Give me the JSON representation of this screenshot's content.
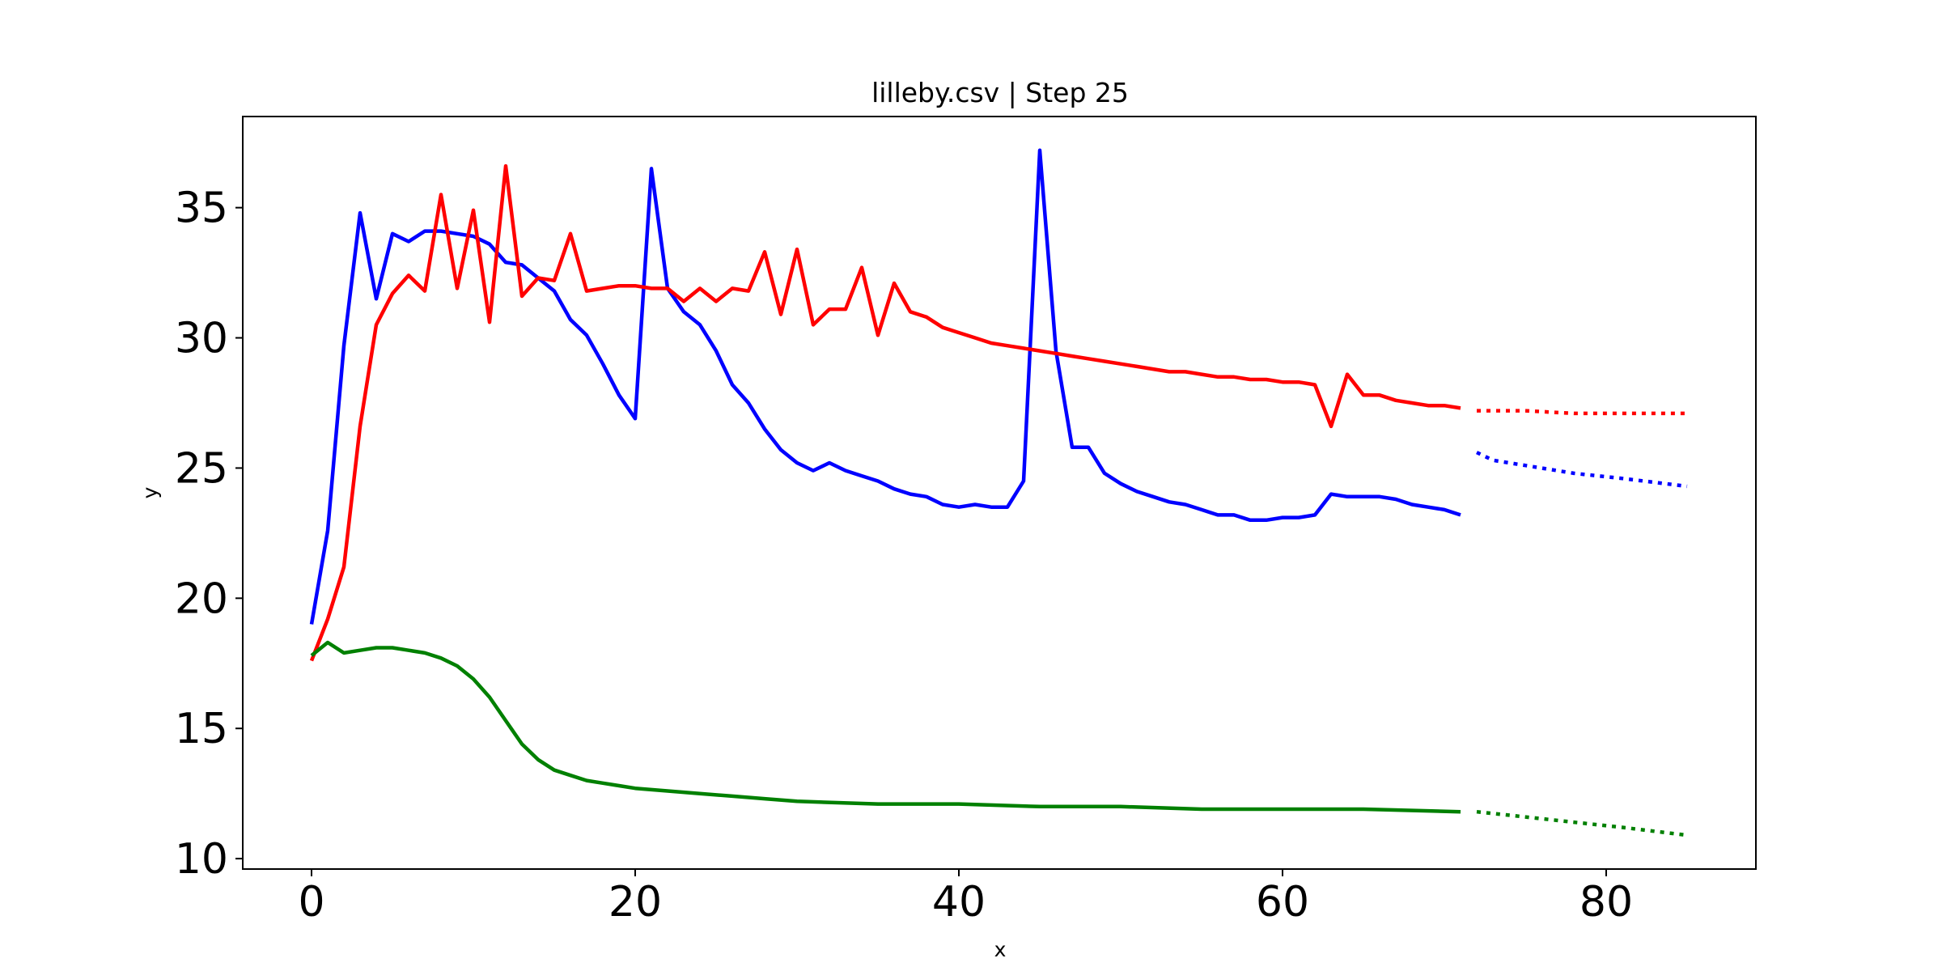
{
  "chart_data": {
    "type": "line",
    "title": "lilleby.csv | Step 25",
    "xlabel": "x",
    "ylabel": "y",
    "xlim": [
      -4.25,
      89.25
    ],
    "ylim": [
      9.6,
      38.5
    ],
    "xticks": [
      0,
      20,
      40,
      60,
      80
    ],
    "yticks": [
      10,
      15,
      20,
      25,
      30,
      35
    ],
    "grid": false,
    "legend": "none",
    "series": [
      {
        "color": "#0000ff",
        "style": "solid",
        "points": [
          [
            0,
            19.0
          ],
          [
            1,
            22.6
          ],
          [
            2,
            29.7
          ],
          [
            3,
            34.8
          ],
          [
            4,
            31.5
          ],
          [
            5,
            34.0
          ],
          [
            6,
            33.7
          ],
          [
            7,
            34.1
          ],
          [
            8,
            34.1
          ],
          [
            9,
            34.0
          ],
          [
            10,
            33.9
          ],
          [
            11,
            33.6
          ],
          [
            12,
            32.9
          ],
          [
            13,
            32.8
          ],
          [
            14,
            32.3
          ],
          [
            15,
            31.8
          ],
          [
            16,
            30.7
          ],
          [
            17,
            30.1
          ],
          [
            18,
            29.0
          ],
          [
            19,
            27.8
          ],
          [
            20,
            26.9
          ],
          [
            21,
            36.5
          ],
          [
            22,
            31.9
          ],
          [
            23,
            31.0
          ],
          [
            24,
            30.5
          ],
          [
            25,
            29.5
          ],
          [
            26,
            28.2
          ],
          [
            27,
            27.5
          ],
          [
            28,
            26.5
          ],
          [
            29,
            25.7
          ],
          [
            30,
            25.2
          ],
          [
            31,
            24.9
          ],
          [
            32,
            25.2
          ],
          [
            33,
            24.9
          ],
          [
            34,
            24.7
          ],
          [
            35,
            24.5
          ],
          [
            36,
            24.2
          ],
          [
            37,
            24.0
          ],
          [
            38,
            23.9
          ],
          [
            39,
            23.6
          ],
          [
            40,
            23.5
          ],
          [
            41,
            23.6
          ],
          [
            42,
            23.5
          ],
          [
            43,
            23.5
          ],
          [
            44,
            24.5
          ],
          [
            45,
            37.2
          ],
          [
            46,
            29.5
          ],
          [
            47,
            25.8
          ],
          [
            48,
            25.8
          ],
          [
            49,
            24.8
          ],
          [
            50,
            24.4
          ],
          [
            51,
            24.1
          ],
          [
            52,
            23.9
          ],
          [
            53,
            23.7
          ],
          [
            54,
            23.6
          ],
          [
            55,
            23.4
          ],
          [
            56,
            23.2
          ],
          [
            57,
            23.2
          ],
          [
            58,
            23.0
          ],
          [
            59,
            23.0
          ],
          [
            60,
            23.1
          ],
          [
            61,
            23.1
          ],
          [
            62,
            23.2
          ],
          [
            63,
            24.0
          ],
          [
            64,
            23.9
          ],
          [
            65,
            23.9
          ],
          [
            66,
            23.9
          ],
          [
            67,
            23.8
          ],
          [
            68,
            23.6
          ],
          [
            69,
            23.5
          ],
          [
            70,
            23.4
          ],
          [
            71,
            23.2
          ]
        ]
      },
      {
        "color": "#ff0000",
        "style": "solid",
        "points": [
          [
            0,
            17.6
          ],
          [
            1,
            19.2
          ],
          [
            2,
            21.2
          ],
          [
            3,
            26.6
          ],
          [
            4,
            30.5
          ],
          [
            5,
            31.7
          ],
          [
            6,
            32.4
          ],
          [
            7,
            31.8
          ],
          [
            8,
            35.5
          ],
          [
            9,
            31.9
          ],
          [
            10,
            34.9
          ],
          [
            11,
            30.6
          ],
          [
            12,
            36.6
          ],
          [
            13,
            31.6
          ],
          [
            14,
            32.3
          ],
          [
            15,
            32.2
          ],
          [
            16,
            34.0
          ],
          [
            17,
            31.8
          ],
          [
            18,
            31.9
          ],
          [
            19,
            32.0
          ],
          [
            20,
            32.0
          ],
          [
            21,
            31.9
          ],
          [
            22,
            31.9
          ],
          [
            23,
            31.4
          ],
          [
            24,
            31.9
          ],
          [
            25,
            31.4
          ],
          [
            26,
            31.9
          ],
          [
            27,
            31.8
          ],
          [
            28,
            33.3
          ],
          [
            29,
            30.9
          ],
          [
            30,
            33.4
          ],
          [
            31,
            30.5
          ],
          [
            32,
            31.1
          ],
          [
            33,
            31.1
          ],
          [
            34,
            32.7
          ],
          [
            35,
            30.1
          ],
          [
            36,
            32.1
          ],
          [
            37,
            31.0
          ],
          [
            38,
            30.8
          ],
          [
            39,
            30.4
          ],
          [
            40,
            30.2
          ],
          [
            41,
            30.0
          ],
          [
            42,
            29.8
          ],
          [
            43,
            29.7
          ],
          [
            44,
            29.6
          ],
          [
            45,
            29.5
          ],
          [
            46,
            29.4
          ],
          [
            47,
            29.3
          ],
          [
            48,
            29.2
          ],
          [
            49,
            29.1
          ],
          [
            50,
            29.0
          ],
          [
            51,
            28.9
          ],
          [
            52,
            28.8
          ],
          [
            53,
            28.7
          ],
          [
            54,
            28.7
          ],
          [
            55,
            28.6
          ],
          [
            56,
            28.5
          ],
          [
            57,
            28.5
          ],
          [
            58,
            28.4
          ],
          [
            59,
            28.4
          ],
          [
            60,
            28.3
          ],
          [
            61,
            28.3
          ],
          [
            62,
            28.2
          ],
          [
            63,
            26.6
          ],
          [
            64,
            28.6
          ],
          [
            65,
            27.8
          ],
          [
            66,
            27.8
          ],
          [
            67,
            27.6
          ],
          [
            68,
            27.5
          ],
          [
            69,
            27.4
          ],
          [
            70,
            27.4
          ],
          [
            71,
            27.3
          ]
        ]
      },
      {
        "color": "#008000",
        "style": "solid",
        "points": [
          [
            0,
            17.8
          ],
          [
            1,
            18.3
          ],
          [
            2,
            17.9
          ],
          [
            3,
            18.0
          ],
          [
            4,
            18.1
          ],
          [
            5,
            18.1
          ],
          [
            6,
            18.0
          ],
          [
            7,
            17.9
          ],
          [
            8,
            17.7
          ],
          [
            9,
            17.4
          ],
          [
            10,
            16.9
          ],
          [
            11,
            16.2
          ],
          [
            12,
            15.3
          ],
          [
            13,
            14.4
          ],
          [
            14,
            13.8
          ],
          [
            15,
            13.4
          ],
          [
            16,
            13.2
          ],
          [
            17,
            13.0
          ],
          [
            18,
            12.9
          ],
          [
            19,
            12.8
          ],
          [
            20,
            12.7
          ],
          [
            22,
            12.6
          ],
          [
            24,
            12.5
          ],
          [
            26,
            12.4
          ],
          [
            28,
            12.3
          ],
          [
            30,
            12.2
          ],
          [
            35,
            12.1
          ],
          [
            40,
            12.1
          ],
          [
            45,
            12.0
          ],
          [
            50,
            12.0
          ],
          [
            55,
            11.9
          ],
          [
            60,
            11.9
          ],
          [
            65,
            11.9
          ],
          [
            71,
            11.8
          ]
        ]
      },
      {
        "color": "#ff0000",
        "style": "dotted",
        "points": [
          [
            72,
            27.2
          ],
          [
            75,
            27.2
          ],
          [
            78,
            27.1
          ],
          [
            81,
            27.1
          ],
          [
            85,
            27.1
          ]
        ]
      },
      {
        "color": "#0000ff",
        "style": "dotted",
        "points": [
          [
            72,
            25.6
          ],
          [
            73,
            25.3
          ],
          [
            75,
            25.1
          ],
          [
            78,
            24.8
          ],
          [
            81,
            24.6
          ],
          [
            85,
            24.3
          ]
        ]
      },
      {
        "color": "#008000",
        "style": "dotted",
        "points": [
          [
            72,
            11.8
          ],
          [
            75,
            11.6
          ],
          [
            78,
            11.4
          ],
          [
            81,
            11.2
          ],
          [
            85,
            10.9
          ]
        ]
      }
    ]
  }
}
